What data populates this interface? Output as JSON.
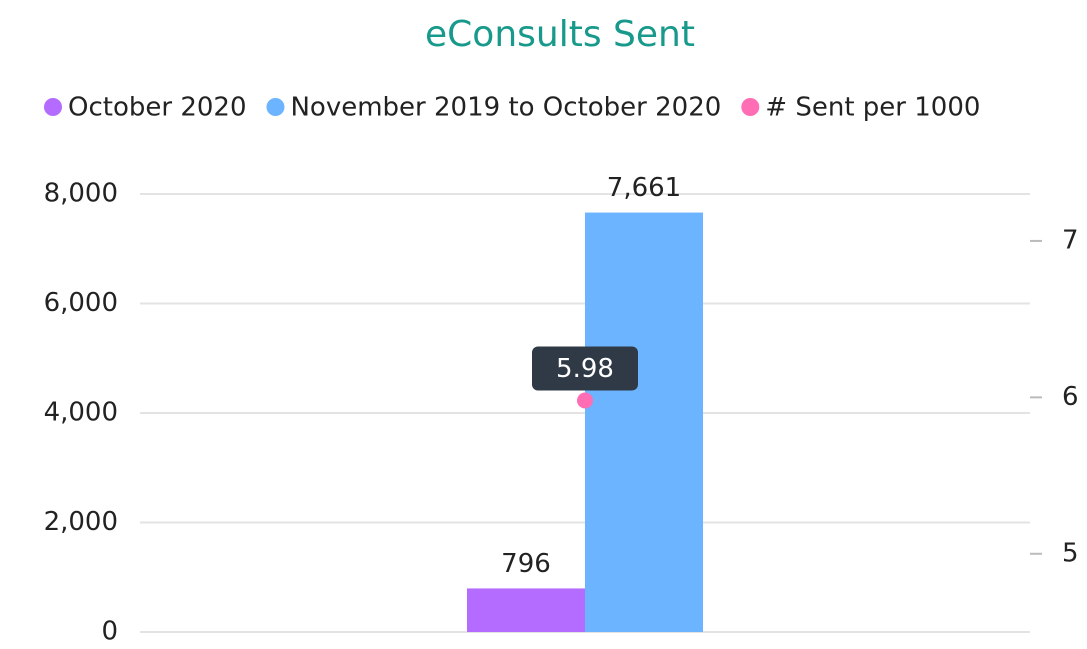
{
  "chart_data": {
    "type": "bar",
    "title": "eConsults Sent",
    "categories": [
      null
    ],
    "series": [
      {
        "name": "October 2020",
        "color": "#b36cff",
        "values": [
          796
        ],
        "value_labels": [
          "796"
        ]
      },
      {
        "name": "November 2019 to October 2020",
        "color": "#6cb4ff",
        "values": [
          7661
        ],
        "value_labels": [
          "7,661"
        ]
      },
      {
        "name": "# Sent per 1000",
        "color": "#ff6eb4",
        "values": [
          5.98
        ],
        "axis": "y2",
        "type": "scatter"
      }
    ],
    "ylim": [
      0,
      8000
    ],
    "yticks": [
      0,
      {
        "value": 2000,
        "label": "2,000"
      },
      {
        "value": 4000,
        "label": "4,000"
      },
      {
        "value": 6000,
        "label": "6,000"
      },
      {
        "value": 8000,
        "label": "8,000"
      }
    ],
    "y2lim": [
      4.5,
      7.3
    ],
    "y2ticks": [
      5,
      6,
      7
    ],
    "grid": true,
    "legend": "top"
  }
}
